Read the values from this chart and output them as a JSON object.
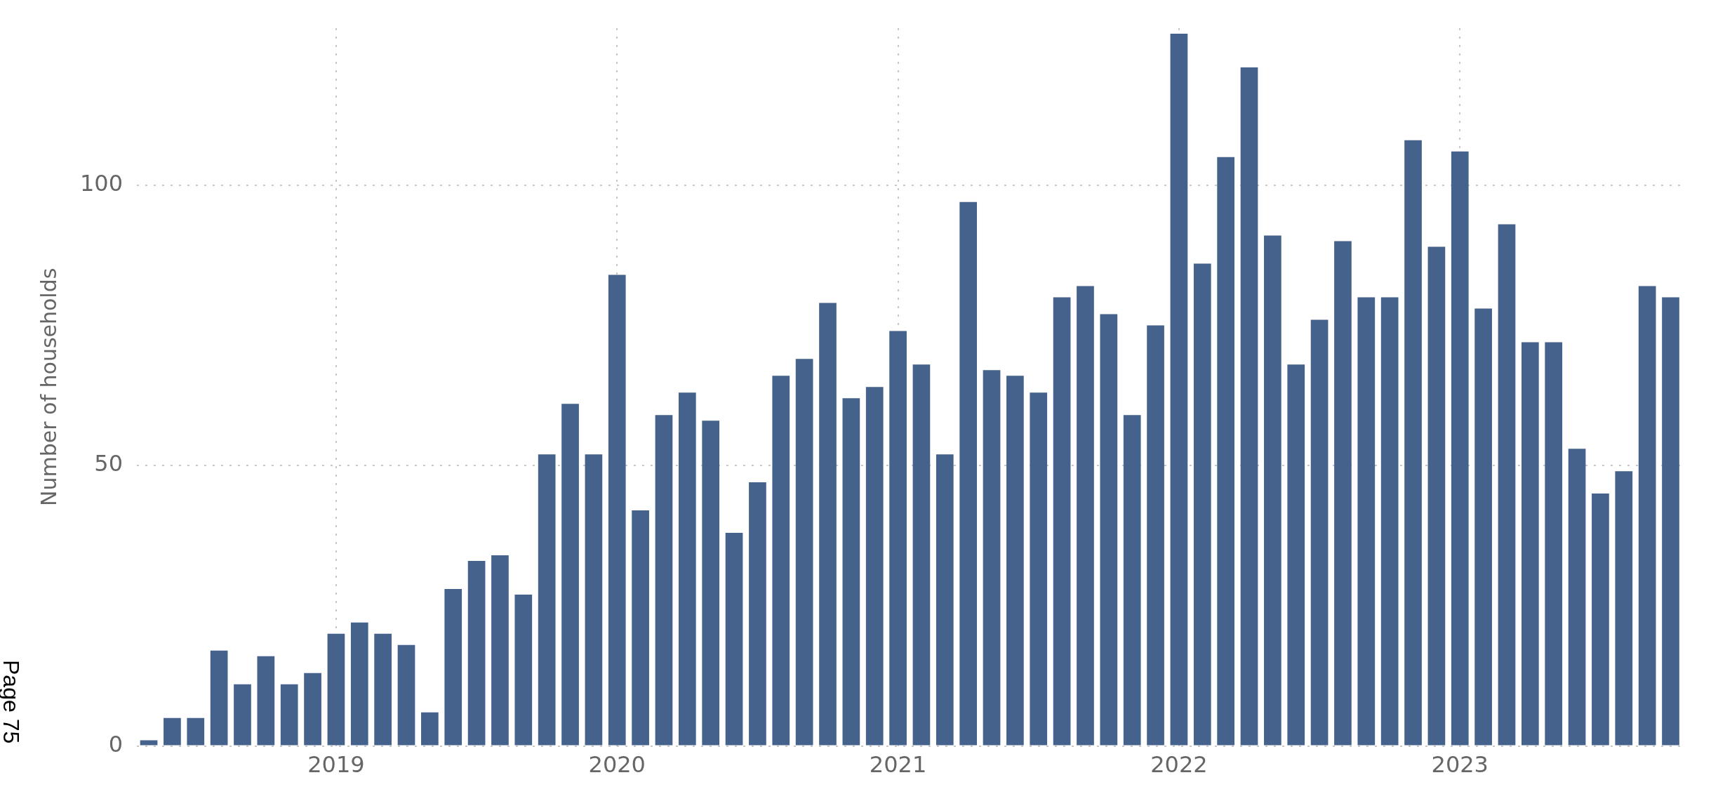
{
  "chart_data": {
    "type": "bar",
    "ylabel": "Number of households",
    "color": "#44628c",
    "x": [
      "2018-05",
      "2018-06",
      "2018-07",
      "2018-08",
      "2018-09",
      "2018-10",
      "2018-11",
      "2018-12",
      "2019-01",
      "2019-02",
      "2019-03",
      "2019-04",
      "2019-05",
      "2019-06",
      "2019-07",
      "2019-08",
      "2019-09",
      "2019-10",
      "2019-11",
      "2019-12",
      "2020-01",
      "2020-02",
      "2020-03",
      "2020-04",
      "2020-05",
      "2020-06",
      "2020-07",
      "2020-08",
      "2020-09",
      "2020-10",
      "2020-11",
      "2020-12",
      "2021-01",
      "2021-02",
      "2021-03",
      "2021-04",
      "2021-05",
      "2021-06",
      "2021-07",
      "2021-08",
      "2021-09",
      "2021-10",
      "2021-11",
      "2021-12",
      "2022-01",
      "2022-02",
      "2022-03",
      "2022-04",
      "2022-05",
      "2022-06",
      "2022-07",
      "2022-08",
      "2022-09",
      "2022-10",
      "2022-11",
      "2022-12",
      "2023-01",
      "2023-02",
      "2023-03",
      "2023-04",
      "2023-05",
      "2023-06",
      "2023-07",
      "2023-08",
      "2023-09",
      "2023-10"
    ],
    "values": [
      1,
      5,
      5,
      17,
      11,
      16,
      11,
      13,
      20,
      22,
      20,
      18,
      6,
      28,
      33,
      34,
      27,
      52,
      61,
      52,
      84,
      42,
      59,
      63,
      58,
      38,
      47,
      66,
      69,
      79,
      62,
      64,
      74,
      68,
      52,
      97,
      67,
      66,
      63,
      80,
      82,
      77,
      59,
      75,
      127,
      86,
      105,
      121,
      91,
      68,
      76,
      90,
      80,
      80,
      108,
      89,
      106,
      78,
      93,
      72,
      72,
      53,
      45,
      49,
      82,
      80
    ],
    "xlim": [
      "2018-04-16",
      "2023-10-17"
    ],
    "xticks": [
      {
        "value": "2019-01",
        "label": "2019"
      },
      {
        "value": "2020-01",
        "label": "2020"
      },
      {
        "value": "2021-01",
        "label": "2021"
      },
      {
        "value": "2022-01",
        "label": "2022"
      },
      {
        "value": "2023-01",
        "label": "2023"
      }
    ],
    "ylim": [
      0,
      128
    ],
    "yticks": [
      0,
      50,
      100
    ],
    "grid": true,
    "annotations": [
      "Page 75"
    ]
  }
}
